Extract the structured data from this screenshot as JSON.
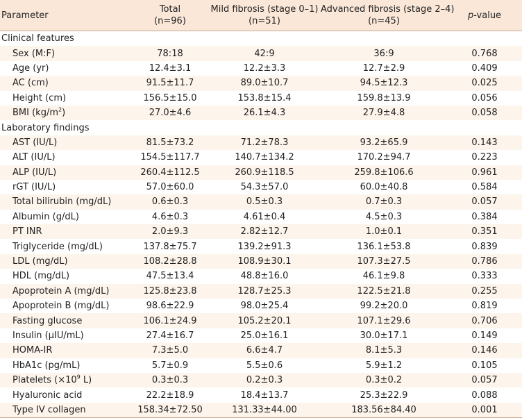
{
  "header": {
    "parameter": "Parameter",
    "total_line1": "Total",
    "total_line2": "(n=96)",
    "mild_line1": "Mild fibrosis (stage 0–1)",
    "mild_line2": "(n=51)",
    "advanced_line1": "Advanced fibrosis (stage 2–4)",
    "advanced_line2": "(n=45)",
    "p_italic": "p",
    "p_rest": "-value"
  },
  "sections": [
    {
      "title": "Clinical features",
      "rows": [
        {
          "label": "Sex (M:F)",
          "total": "78:18",
          "mild": "42:9",
          "advanced": "36:9",
          "p": "0.768"
        },
        {
          "label": "Age (yr)",
          "total": "12.4±3.1",
          "mild": "12.2±3.3",
          "advanced": "12.7±2.9",
          "p": "0.409"
        },
        {
          "label": "AC (cm)",
          "total": "91.5±11.7",
          "mild": "89.0±10.7",
          "advanced": "94.5±12.3",
          "p": "0.025"
        },
        {
          "label": "Height (cm)",
          "total": "156.5±15.0",
          "mild": "153.8±15.4",
          "advanced": "159.8±13.9",
          "p": "0.056"
        },
        {
          "label_pre": "BMI (kg/m",
          "label_sup": "2",
          "label_post": ")",
          "total": "27.0±4.6",
          "mild": "26.1±4.3",
          "advanced": "27.9±4.8",
          "p": "0.058"
        }
      ]
    },
    {
      "title": "Laboratory findings",
      "rows": [
        {
          "label": "AST (IU/L)",
          "total": "81.5±73.2",
          "mild": "71.2±78.3",
          "advanced": "93.2±65.9",
          "p": "0.143"
        },
        {
          "label": "ALT (IU/L)",
          "total": "154.5±117.7",
          "mild": "140.7±134.2",
          "advanced": "170.2±94.7",
          "p": "0.223"
        },
        {
          "label": "ALP (IU/L)",
          "total": "260.4±112.5",
          "mild": "260.9±118.5",
          "advanced": "259.8±106.6",
          "p": "0.961"
        },
        {
          "label": "rGT (IU/L)",
          "total": "57.0±60.0",
          "mild": "54.3±57.0",
          "advanced": "60.0±40.8",
          "p": "0.584"
        },
        {
          "label": "Total bilirubin (mg/dL)",
          "total": "0.6±0.3",
          "mild": "0.5±0.3",
          "advanced": "0.7±0.3",
          "p": "0.057"
        },
        {
          "label": "Albumin (g/dL)",
          "total": "4.6±0.3",
          "mild": "4.61±0.4",
          "advanced": "4.5±0.3",
          "p": "0.384"
        },
        {
          "label": "PT INR",
          "total": "2.0±9.3",
          "mild": "2.82±12.7",
          "advanced": "1.0±0.1",
          "p": "0.351"
        },
        {
          "label": "Triglyceride (mg/dL)",
          "total": "137.8±75.7",
          "mild": "139.2±91.3",
          "advanced": "136.1±53.8",
          "p": "0.839"
        },
        {
          "label": "LDL (mg/dL)",
          "total": "108.2±28.8",
          "mild": "108.9±30.1",
          "advanced": "107.3±27.5",
          "p": "0.786"
        },
        {
          "label": "HDL (mg/dL)",
          "total": "47.5±13.4",
          "mild": "48.8±16.0",
          "advanced": "46.1±9.8",
          "p": "0.333"
        },
        {
          "label": "Apoprotein A (mg/dL)",
          "total": "125.8±23.8",
          "mild": "128.7±25.3",
          "advanced": "122.5±21.8",
          "p": "0.255"
        },
        {
          "label": "Apoprotein B (mg/dL)",
          "total": "98.6±22.9",
          "mild": "98.0±25.4",
          "advanced": "99.2±20.0",
          "p": "0.819"
        },
        {
          "label": "Fasting glucose",
          "total": "106.1±24.9",
          "mild": "105.2±20.1",
          "advanced": "107.1±29.6",
          "p": "0.706"
        },
        {
          "label": "Insulin (μIU/mL)",
          "total": "27.4±16.7",
          "mild": "25.0±16.1",
          "advanced": "30.0±17.1",
          "p": "0.149"
        },
        {
          "label": "HOMA-IR",
          "total": "7.3±5.0",
          "mild": "6.6±4.7",
          "advanced": "8.1±5.3",
          "p": "0.146"
        },
        {
          "label": "HbA1c (pg/mL)",
          "total": "5.7±0.9",
          "mild": "5.5±0.6",
          "advanced": "5.9±1.2",
          "p": "0.105"
        },
        {
          "label_pre": "Platelets (×10",
          "label_sup": "9",
          "label_post": " L)",
          "total": "0.3±0.3",
          "mild": "0.2±0.3",
          "advanced": "0.3±0.2",
          "p": "0.057"
        },
        {
          "label": "Hyaluronic acid",
          "total": "22.2±18.9",
          "mild": "18.4±13.7",
          "advanced": "25.3±22.9",
          "p": "0.088"
        },
        {
          "label": "Type IV collagen",
          "total": "158.34±72.50",
          "mild": "131.33±44.00",
          "advanced": "183.56±84.40",
          "p": "0.001"
        }
      ]
    }
  ]
}
